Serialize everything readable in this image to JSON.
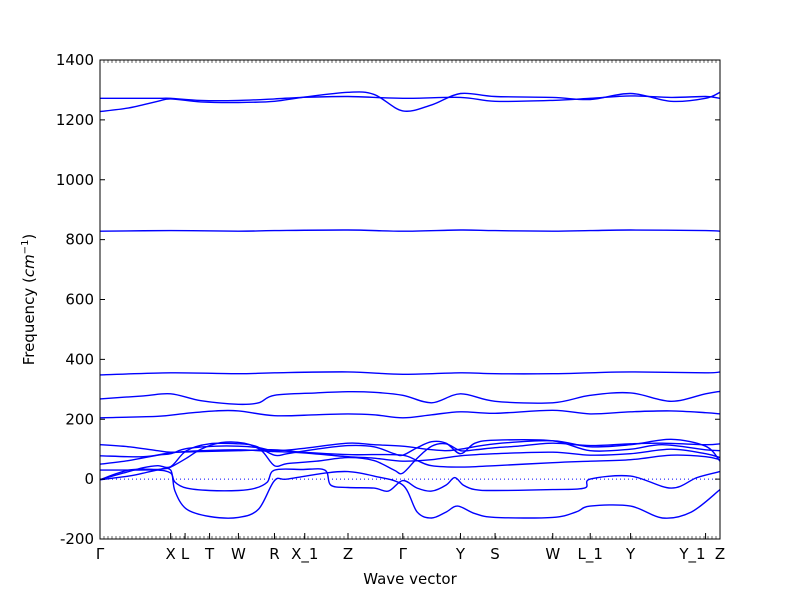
{
  "chart_data": {
    "type": "line",
    "title": "",
    "xlabel": "Wave vector",
    "ylabel": "Frequency",
    "ylabel_unit": "cm",
    "ylabel_unit_exp": "−1",
    "ylim": [
      -200,
      1400
    ],
    "yticks": [
      -200,
      0,
      200,
      400,
      600,
      800,
      1000,
      1200,
      1400
    ],
    "x_range": [
      0,
      21.5
    ],
    "kpoints": [
      {
        "label": "Γ",
        "x": 0
      },
      {
        "label": "X",
        "x": 2.45
      },
      {
        "label": "L",
        "x": 2.95
      },
      {
        "label": "T",
        "x": 3.8
      },
      {
        "label": "W",
        "x": 4.8
      },
      {
        "label": "R",
        "x": 6.05
      },
      {
        "label": "X_1",
        "x": 7.1
      },
      {
        "label": "Z",
        "x": 8.6
      },
      {
        "label": "Γ",
        "x": 10.5
      },
      {
        "label": "Y",
        "x": 12.5
      },
      {
        "label": "S",
        "x": 13.7
      },
      {
        "label": "W",
        "x": 15.7
      },
      {
        "label": "L_1",
        "x": 17.0
      },
      {
        "label": "Y",
        "x": 18.4
      },
      {
        "label": "Y_1",
        "x": 21.0
      },
      {
        "label": "Z",
        "x": 21.5
      }
    ],
    "zero_line": true,
    "series": [
      {
        "values": [
          [
            0,
            -2
          ],
          [
            1,
            10
          ],
          [
            1.6,
            22
          ],
          [
            2.2,
            35
          ],
          [
            2.45,
            40
          ],
          [
            3,
            70
          ],
          [
            3.5,
            100
          ],
          [
            4.2,
            122
          ],
          [
            5,
            120
          ],
          [
            5.6,
            95
          ],
          [
            6.05,
            45
          ],
          [
            6.5,
            52
          ],
          [
            7.5,
            60
          ],
          [
            8.6,
            72
          ],
          [
            9.5,
            62
          ],
          [
            10.2,
            30
          ],
          [
            10.5,
            20
          ],
          [
            11,
            70
          ],
          [
            11.5,
            110
          ],
          [
            12,
            118
          ],
          [
            12.5,
            95
          ],
          [
            13,
            98
          ],
          [
            13.7,
            105
          ],
          [
            14.5,
            110
          ],
          [
            15.7,
            120
          ],
          [
            17,
            112
          ],
          [
            18.4,
            118
          ],
          [
            19.5,
            120
          ],
          [
            21,
            115
          ],
          [
            21.5,
            118
          ]
        ]
      },
      {
        "values": [
          [
            0,
            -2
          ],
          [
            0.8,
            20
          ],
          [
            1.5,
            38
          ],
          [
            2,
            45
          ],
          [
            2.45,
            42
          ],
          [
            3,
            95
          ],
          [
            3.8,
            118
          ],
          [
            4.8,
            118
          ],
          [
            5.4,
            110
          ],
          [
            6.05,
            80
          ],
          [
            6.5,
            85
          ],
          [
            7.5,
            100
          ],
          [
            8.6,
            112
          ],
          [
            9.5,
            108
          ],
          [
            10.2,
            85
          ],
          [
            10.5,
            80
          ],
          [
            11,
            105
          ],
          [
            11.5,
            125
          ],
          [
            12,
            120
          ],
          [
            12.5,
            85
          ],
          [
            13,
            120
          ],
          [
            13.7,
            130
          ],
          [
            15.7,
            128
          ],
          [
            17,
            95
          ],
          [
            18.4,
            100
          ],
          [
            19.5,
            115
          ],
          [
            21,
            98
          ],
          [
            21.5,
            95
          ]
        ]
      },
      {
        "values": [
          [
            0,
            50
          ],
          [
            1,
            62
          ],
          [
            2,
            80
          ],
          [
            2.45,
            85
          ],
          [
            3,
            102
          ],
          [
            4,
            110
          ],
          [
            4.8,
            110
          ],
          [
            5.5,
            105
          ],
          [
            6.05,
            95
          ],
          [
            7,
            102
          ],
          [
            8.6,
            120
          ],
          [
            9.5,
            115
          ],
          [
            10.5,
            110
          ],
          [
            11.3,
            100
          ],
          [
            12,
            95
          ],
          [
            12.5,
            100
          ],
          [
            13.7,
            118
          ],
          [
            15.7,
            128
          ],
          [
            17,
            108
          ],
          [
            18.4,
            115
          ],
          [
            19.8,
            133
          ],
          [
            21,
            110
          ],
          [
            21.5,
            60
          ]
        ]
      },
      {
        "values": [
          [
            0,
            78
          ],
          [
            1.5,
            75
          ],
          [
            2.45,
            88
          ],
          [
            3.5,
            95
          ],
          [
            4.8,
            98
          ],
          [
            6.05,
            92
          ],
          [
            7,
            88
          ],
          [
            8.6,
            75
          ],
          [
            9.5,
            70
          ],
          [
            10.5,
            60
          ],
          [
            11.5,
            65
          ],
          [
            12.5,
            78
          ],
          [
            13.7,
            85
          ],
          [
            15.7,
            90
          ],
          [
            17,
            80
          ],
          [
            18.4,
            85
          ],
          [
            19.8,
            100
          ],
          [
            21,
            85
          ],
          [
            21.5,
            72
          ]
        ]
      },
      {
        "values": [
          [
            0,
            115
          ],
          [
            1,
            108
          ],
          [
            2,
            95
          ],
          [
            2.45,
            90
          ],
          [
            3.5,
            92
          ],
          [
            4.8,
            95
          ],
          [
            6.05,
            98
          ],
          [
            7,
            90
          ],
          [
            8.6,
            82
          ],
          [
            9.5,
            82
          ],
          [
            10.5,
            80
          ],
          [
            11,
            62
          ],
          [
            11.5,
            45
          ],
          [
            12.5,
            40
          ],
          [
            13.7,
            45
          ],
          [
            15.7,
            55
          ],
          [
            17,
            60
          ],
          [
            18.4,
            65
          ],
          [
            19.8,
            80
          ],
          [
            21,
            75
          ],
          [
            21.5,
            65
          ]
        ]
      },
      {
        "values": [
          [
            0,
            30
          ],
          [
            1,
            30
          ],
          [
            2,
            30
          ],
          [
            2.45,
            20
          ],
          [
            2.6,
            -10
          ],
          [
            3,
            -30
          ],
          [
            3.8,
            -38
          ],
          [
            4.8,
            -38
          ],
          [
            5.4,
            -30
          ],
          [
            5.8,
            -10
          ],
          [
            6.05,
            30
          ],
          [
            7,
            32
          ],
          [
            7.8,
            30
          ],
          [
            8,
            -20
          ],
          [
            8.6,
            -28
          ],
          [
            9.5,
            -30
          ],
          [
            10,
            -40
          ],
          [
            10.5,
            -5
          ],
          [
            11,
            -30
          ],
          [
            11.5,
            -40
          ],
          [
            12,
            -20
          ],
          [
            12.3,
            5
          ],
          [
            12.6,
            -20
          ],
          [
            13,
            -35
          ],
          [
            13.7,
            -38
          ],
          [
            15.7,
            -35
          ],
          [
            16.8,
            -30
          ],
          [
            17,
            0
          ],
          [
            18.4,
            10
          ],
          [
            19.8,
            -30
          ],
          [
            20.7,
            5
          ],
          [
            21.5,
            25
          ]
        ]
      },
      {
        "values": [
          [
            0,
            -2
          ],
          [
            1,
            30
          ],
          [
            2,
            32
          ],
          [
            2.45,
            30
          ],
          [
            2.6,
            -40
          ],
          [
            3,
            -100
          ],
          [
            3.8,
            -125
          ],
          [
            4.8,
            -128
          ],
          [
            5.5,
            -100
          ],
          [
            6.05,
            -5
          ],
          [
            6.5,
            0
          ],
          [
            7.8,
            20
          ],
          [
            8.6,
            25
          ],
          [
            9.5,
            10
          ],
          [
            10.5,
            -20
          ],
          [
            11,
            -110
          ],
          [
            11.5,
            -130
          ],
          [
            12,
            -110
          ],
          [
            12.4,
            -90
          ],
          [
            13,
            -115
          ],
          [
            13.7,
            -128
          ],
          [
            15.7,
            -128
          ],
          [
            16.5,
            -110
          ],
          [
            17,
            -90
          ],
          [
            18.4,
            -90
          ],
          [
            19.5,
            -130
          ],
          [
            20.5,
            -110
          ],
          [
            21.5,
            -35
          ]
        ]
      },
      {
        "values": [
          [
            0,
            205
          ],
          [
            2,
            210
          ],
          [
            3,
            220
          ],
          [
            4,
            228
          ],
          [
            4.8,
            228
          ],
          [
            6.05,
            212
          ],
          [
            7.5,
            215
          ],
          [
            8.6,
            218
          ],
          [
            9.5,
            215
          ],
          [
            10.5,
            205
          ],
          [
            11.5,
            215
          ],
          [
            12.5,
            225
          ],
          [
            13.7,
            220
          ],
          [
            15.7,
            230
          ],
          [
            17,
            218
          ],
          [
            18.4,
            225
          ],
          [
            19.8,
            228
          ],
          [
            21,
            222
          ],
          [
            21.5,
            218
          ]
        ]
      },
      {
        "values": [
          [
            0,
            268
          ],
          [
            1.5,
            278
          ],
          [
            2.45,
            285
          ],
          [
            3.5,
            262
          ],
          [
            4.8,
            250
          ],
          [
            5.5,
            255
          ],
          [
            6.05,
            280
          ],
          [
            7.5,
            288
          ],
          [
            8.6,
            292
          ],
          [
            9.5,
            290
          ],
          [
            10.5,
            280
          ],
          [
            11.5,
            255
          ],
          [
            12.5,
            285
          ],
          [
            13.7,
            260
          ],
          [
            15.7,
            255
          ],
          [
            17,
            280
          ],
          [
            18.4,
            288
          ],
          [
            19.8,
            260
          ],
          [
            21,
            285
          ],
          [
            21.5,
            293
          ]
        ]
      },
      {
        "values": [
          [
            0,
            348
          ],
          [
            2.45,
            355
          ],
          [
            4.8,
            352
          ],
          [
            6.05,
            355
          ],
          [
            8.6,
            358
          ],
          [
            10.5,
            350
          ],
          [
            12.5,
            355
          ],
          [
            13.7,
            352
          ],
          [
            15.7,
            352
          ],
          [
            17,
            355
          ],
          [
            18.4,
            358
          ],
          [
            21,
            355
          ],
          [
            21.5,
            358
          ]
        ]
      },
      {
        "values": [
          [
            0,
            828
          ],
          [
            2.45,
            830
          ],
          [
            4.8,
            828
          ],
          [
            6.05,
            830
          ],
          [
            8.6,
            832
          ],
          [
            10.5,
            828
          ],
          [
            12.5,
            832
          ],
          [
            13.7,
            830
          ],
          [
            15.7,
            828
          ],
          [
            17,
            830
          ],
          [
            18.4,
            832
          ],
          [
            21,
            830
          ],
          [
            21.5,
            828
          ]
        ]
      },
      {
        "values": [
          [
            0,
            1228
          ],
          [
            1,
            1240
          ],
          [
            2,
            1262
          ],
          [
            2.45,
            1270
          ],
          [
            3.5,
            1260
          ],
          [
            4.8,
            1258
          ],
          [
            6.05,
            1262
          ],
          [
            7,
            1275
          ],
          [
            8.6,
            1292
          ],
          [
            9.5,
            1285
          ],
          [
            10.5,
            1230
          ],
          [
            11.5,
            1250
          ],
          [
            12.5,
            1288
          ],
          [
            13.7,
            1278
          ],
          [
            15.7,
            1275
          ],
          [
            17,
            1268
          ],
          [
            18.4,
            1288
          ],
          [
            19.8,
            1262
          ],
          [
            21,
            1272
          ],
          [
            21.5,
            1292
          ]
        ]
      },
      {
        "values": [
          [
            0,
            1272
          ],
          [
            2,
            1272
          ],
          [
            2.45,
            1272
          ],
          [
            3.5,
            1265
          ],
          [
            4.8,
            1265
          ],
          [
            6.05,
            1270
          ],
          [
            7,
            1275
          ],
          [
            8.6,
            1278
          ],
          [
            10.5,
            1272
          ],
          [
            12.5,
            1275
          ],
          [
            13.7,
            1262
          ],
          [
            15.7,
            1265
          ],
          [
            17,
            1272
          ],
          [
            18.4,
            1280
          ],
          [
            19.8,
            1275
          ],
          [
            21,
            1278
          ],
          [
            21.5,
            1272
          ]
        ]
      }
    ]
  }
}
